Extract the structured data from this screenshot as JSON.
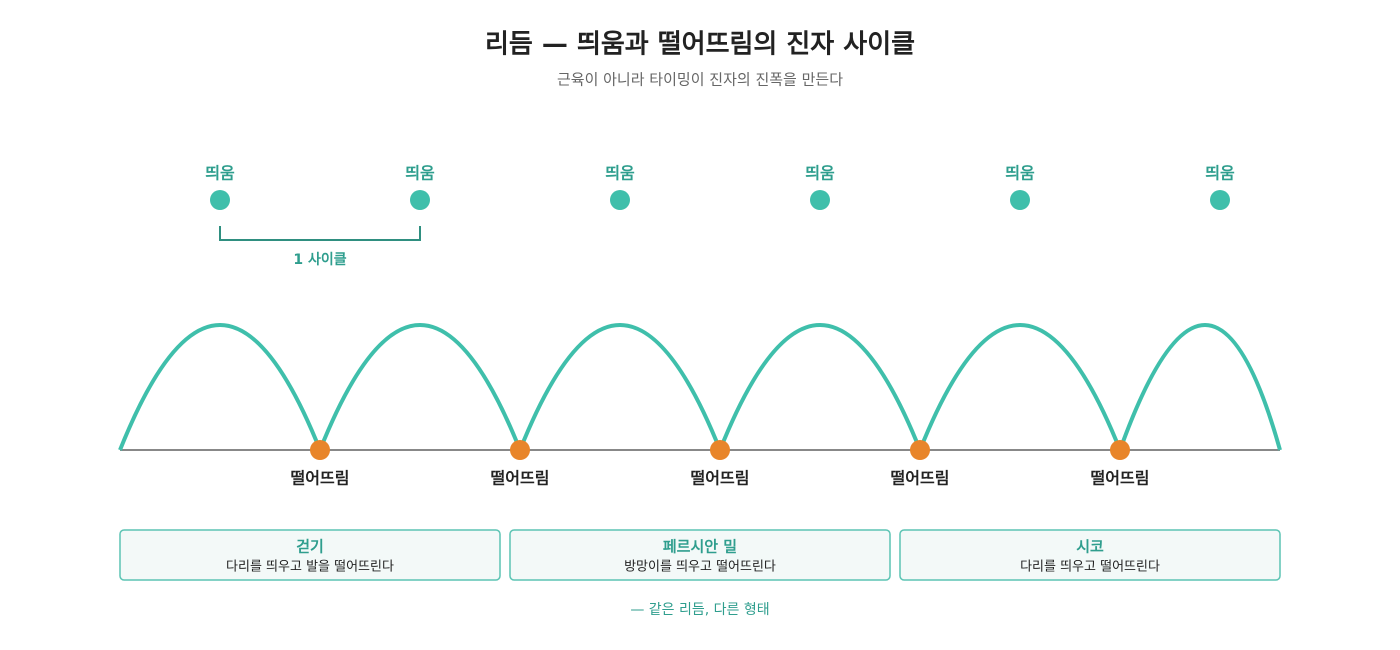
{
  "header": {
    "title": "리듬 — 띄움과 떨어뜨림의 진자 사이클",
    "subtitle": "근육이 아니라 타이밍이 진자의 진폭을 만든다"
  },
  "lifts": [
    "띄움",
    "띄움",
    "띄움",
    "띄움",
    "띄움",
    "띄움"
  ],
  "cycle_label": "1 사이클",
  "drops": [
    "떨어뜨림",
    "떨어뜨림",
    "떨어뜨림",
    "떨어뜨림",
    "떨어뜨림"
  ],
  "cards": [
    {
      "title": "걷기",
      "desc": "다리를 띄우고 발을 떨어뜨린다"
    },
    {
      "title": "페르시안 밀",
      "desc": "방망이를 띄우고 떨어뜨린다"
    },
    {
      "title": "시코",
      "desc": "다리를 띄우고 떨어뜨린다"
    }
  ],
  "footer": "— 같은 리듬, 다른 형태"
}
